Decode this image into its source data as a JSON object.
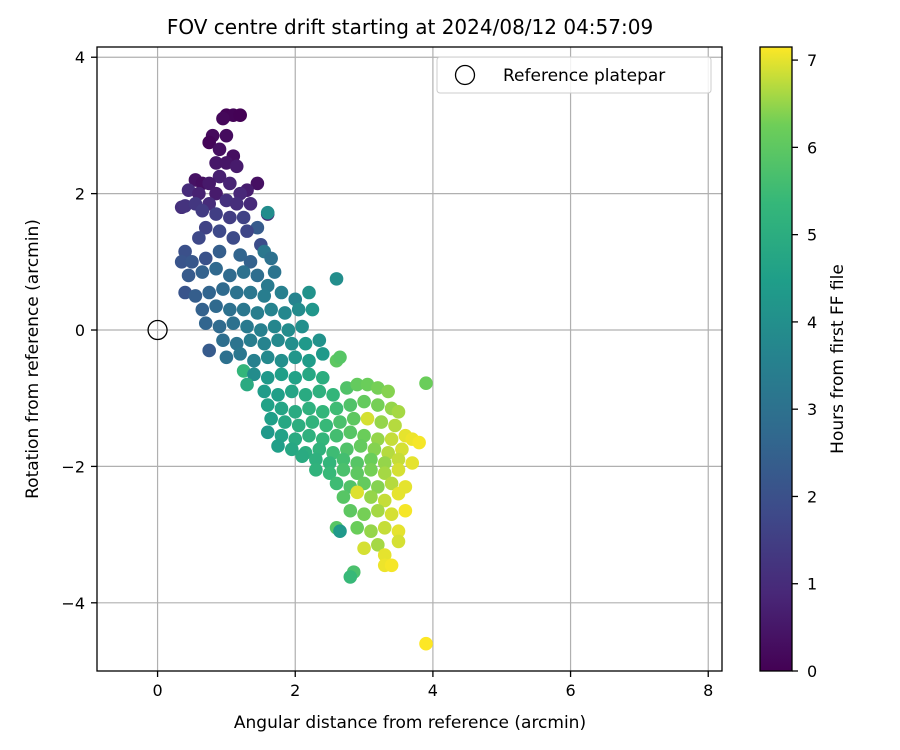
{
  "chart_data": {
    "type": "scatter",
    "title": "FOV centre drift starting at 2024/08/12 04:57:09",
    "xlabel": "Angular distance from reference (arcmin)",
    "ylabel": "Rotation from reference (arcmin)",
    "xlim": [
      -0.88,
      8.2
    ],
    "ylim": [
      -5.0,
      4.15
    ],
    "x_ticks": [
      0,
      2,
      4,
      6,
      8
    ],
    "y_ticks": [
      -4,
      -2,
      0,
      2,
      4
    ],
    "x_tick_labels": [
      "0",
      "2",
      "4",
      "6",
      "8"
    ],
    "y_tick_labels": [
      "−4",
      "−2",
      "0",
      "2",
      "4"
    ],
    "grid": true,
    "legend": {
      "position": "top-right",
      "entries": [
        {
          "label": "Reference platepar",
          "marker": "open-circle",
          "color": "#000000"
        }
      ]
    },
    "reference_point": {
      "x": 0,
      "y": 0
    },
    "colorbar": {
      "label": "Hours from first FF file",
      "range": [
        0,
        7.15
      ],
      "ticks": [
        0,
        1,
        2,
        3,
        4,
        5,
        6,
        7
      ],
      "tick_labels": [
        "0",
        "1",
        "2",
        "3",
        "4",
        "5",
        "6",
        "7"
      ],
      "colormap": "viridis"
    },
    "series": [
      {
        "color_by": "Hours from first FF file",
        "points": [
          [
            1.0,
            3.15,
            0.05
          ],
          [
            1.1,
            3.15,
            0.08
          ],
          [
            1.2,
            3.15,
            0.02
          ],
          [
            0.95,
            3.1,
            0.15
          ],
          [
            0.8,
            2.85,
            0.2
          ],
          [
            0.75,
            2.75,
            0.1
          ],
          [
            1.0,
            2.85,
            0.25
          ],
          [
            0.9,
            2.65,
            0.35
          ],
          [
            1.1,
            2.55,
            0.3
          ],
          [
            0.85,
            2.45,
            0.5
          ],
          [
            1.0,
            2.45,
            0.45
          ],
          [
            1.15,
            2.4,
            0.6
          ],
          [
            0.9,
            2.25,
            0.7
          ],
          [
            0.55,
            2.2,
            0.4
          ],
          [
            0.65,
            2.15,
            0.3
          ],
          [
            0.75,
            2.15,
            0.55
          ],
          [
            1.45,
            2.15,
            0.35
          ],
          [
            1.3,
            2.05,
            0.65
          ],
          [
            1.05,
            2.15,
            0.8
          ],
          [
            0.45,
            2.05,
            1.0
          ],
          [
            0.6,
            2.0,
            0.75
          ],
          [
            0.85,
            2.0,
            0.6
          ],
          [
            1.2,
            2.0,
            0.9
          ],
          [
            0.35,
            1.8,
            1.1
          ],
          [
            0.4,
            1.82,
            1.2
          ],
          [
            0.55,
            1.85,
            1.3
          ],
          [
            0.75,
            1.85,
            1.0
          ],
          [
            1.0,
            1.9,
            1.15
          ],
          [
            1.15,
            1.85,
            1.05
          ],
          [
            1.35,
            1.85,
            0.95
          ],
          [
            1.6,
            1.7,
            0.9
          ],
          [
            0.65,
            1.75,
            1.4
          ],
          [
            0.85,
            1.7,
            1.5
          ],
          [
            1.05,
            1.65,
            1.45
          ],
          [
            1.25,
            1.65,
            1.6
          ],
          [
            1.45,
            1.5,
            2.3
          ],
          [
            1.6,
            1.72,
            3.9
          ],
          [
            1.3,
            1.45,
            1.7
          ],
          [
            0.7,
            1.5,
            1.6
          ],
          [
            0.9,
            1.45,
            1.8
          ],
          [
            1.1,
            1.35,
            1.85
          ],
          [
            1.5,
            1.25,
            1.9
          ],
          [
            0.6,
            1.35,
            1.75
          ],
          [
            0.4,
            1.15,
            2.0
          ],
          [
            0.35,
            1.0,
            2.1
          ],
          [
            0.5,
            1.0,
            2.2
          ],
          [
            0.7,
            1.05,
            2.05
          ],
          [
            0.9,
            1.15,
            2.4
          ],
          [
            1.2,
            1.1,
            2.6
          ],
          [
            1.35,
            1.0,
            2.5
          ],
          [
            1.55,
            1.15,
            3.2
          ],
          [
            1.65,
            1.05,
            3.0
          ],
          [
            0.45,
            0.8,
            2.3
          ],
          [
            0.65,
            0.85,
            2.5
          ],
          [
            0.85,
            0.9,
            2.7
          ],
          [
            1.05,
            0.8,
            2.8
          ],
          [
            1.25,
            0.85,
            3.0
          ],
          [
            1.45,
            0.8,
            2.9
          ],
          [
            1.7,
            0.85,
            3.1
          ],
          [
            1.6,
            0.65,
            3.3
          ],
          [
            2.6,
            0.75,
            3.95
          ],
          [
            0.4,
            0.55,
            2.1
          ],
          [
            0.55,
            0.5,
            2.4
          ],
          [
            0.75,
            0.55,
            2.6
          ],
          [
            0.95,
            0.6,
            2.8
          ],
          [
            1.15,
            0.55,
            3.05
          ],
          [
            1.35,
            0.55,
            3.2
          ],
          [
            1.55,
            0.5,
            3.4
          ],
          [
            1.8,
            0.55,
            3.5
          ],
          [
            2.0,
            0.45,
            3.6
          ],
          [
            2.2,
            0.55,
            4.1
          ],
          [
            0.65,
            0.3,
            2.5
          ],
          [
            0.85,
            0.35,
            2.75
          ],
          [
            1.05,
            0.3,
            3.0
          ],
          [
            1.25,
            0.3,
            3.2
          ],
          [
            1.45,
            0.25,
            3.45
          ],
          [
            1.65,
            0.3,
            3.6
          ],
          [
            1.85,
            0.25,
            3.75
          ],
          [
            2.05,
            0.3,
            3.85
          ],
          [
            2.25,
            0.3,
            4.2
          ],
          [
            0.7,
            0.1,
            2.6
          ],
          [
            0.9,
            0.05,
            2.8
          ],
          [
            1.1,
            0.1,
            3.0
          ],
          [
            1.3,
            0.05,
            3.3
          ],
          [
            1.5,
            0.0,
            3.5
          ],
          [
            1.7,
            0.05,
            3.7
          ],
          [
            1.9,
            0.0,
            3.9
          ],
          [
            2.1,
            0.05,
            4.0
          ],
          [
            0.75,
            -0.3,
            2.3
          ],
          [
            0.95,
            -0.15,
            2.9
          ],
          [
            1.15,
            -0.2,
            3.1
          ],
          [
            1.35,
            -0.15,
            3.4
          ],
          [
            1.55,
            -0.2,
            3.6
          ],
          [
            1.75,
            -0.15,
            3.8
          ],
          [
            1.95,
            -0.2,
            4.0
          ],
          [
            2.15,
            -0.2,
            4.3
          ],
          [
            2.35,
            -0.15,
            4.1
          ],
          [
            1.0,
            -0.4,
            3.0
          ],
          [
            1.2,
            -0.35,
            3.2
          ],
          [
            1.4,
            -0.45,
            3.5
          ],
          [
            1.6,
            -0.4,
            3.8
          ],
          [
            1.8,
            -0.45,
            4.0
          ],
          [
            2.0,
            -0.4,
            4.2
          ],
          [
            2.2,
            -0.45,
            4.4
          ],
          [
            2.4,
            -0.35,
            4.3
          ],
          [
            2.6,
            -0.45,
            6.0
          ],
          [
            2.65,
            -0.4,
            5.9
          ],
          [
            1.25,
            -0.6,
            5.3
          ],
          [
            1.4,
            -0.65,
            3.9
          ],
          [
            1.6,
            -0.7,
            4.3
          ],
          [
            1.8,
            -0.65,
            4.5
          ],
          [
            2.0,
            -0.7,
            4.6
          ],
          [
            2.2,
            -0.65,
            4.8
          ],
          [
            2.4,
            -0.7,
            5.0
          ],
          [
            1.3,
            -0.8,
            4.9
          ],
          [
            1.55,
            -0.9,
            4.4
          ],
          [
            1.75,
            -0.95,
            4.5
          ],
          [
            1.95,
            -0.9,
            4.7
          ],
          [
            2.15,
            -0.95,
            4.9
          ],
          [
            2.35,
            -0.9,
            5.1
          ],
          [
            2.55,
            -0.95,
            5.3
          ],
          [
            2.75,
            -0.85,
            5.8
          ],
          [
            2.9,
            -0.8,
            6.1
          ],
          [
            3.05,
            -0.8,
            6.2
          ],
          [
            3.2,
            -0.85,
            6.3
          ],
          [
            3.35,
            -0.9,
            6.4
          ],
          [
            3.9,
            -0.78,
            6.2
          ],
          [
            1.6,
            -1.1,
            4.6
          ],
          [
            1.8,
            -1.15,
            4.7
          ],
          [
            2.0,
            -1.2,
            4.9
          ],
          [
            2.2,
            -1.15,
            5.1
          ],
          [
            2.4,
            -1.2,
            5.3
          ],
          [
            2.6,
            -1.15,
            5.5
          ],
          [
            2.8,
            -1.1,
            5.8
          ],
          [
            3.0,
            -1.05,
            6.1
          ],
          [
            3.2,
            -1.1,
            6.3
          ],
          [
            3.4,
            -1.15,
            6.5
          ],
          [
            3.5,
            -1.2,
            6.6
          ],
          [
            1.65,
            -1.3,
            4.5
          ],
          [
            1.85,
            -1.35,
            4.8
          ],
          [
            2.05,
            -1.4,
            5.0
          ],
          [
            2.25,
            -1.35,
            5.2
          ],
          [
            2.45,
            -1.4,
            5.4
          ],
          [
            2.65,
            -1.35,
            5.7
          ],
          [
            2.85,
            -1.3,
            6.0
          ],
          [
            3.05,
            -1.3,
            6.9
          ],
          [
            3.25,
            -1.35,
            6.5
          ],
          [
            3.45,
            -1.4,
            6.7
          ],
          [
            1.6,
            -1.5,
            4.3
          ],
          [
            1.8,
            -1.55,
            4.6
          ],
          [
            2.0,
            -1.6,
            4.9
          ],
          [
            2.2,
            -1.55,
            5.1
          ],
          [
            2.4,
            -1.6,
            5.3
          ],
          [
            2.6,
            -1.55,
            5.6
          ],
          [
            2.8,
            -1.5,
            5.9
          ],
          [
            3.0,
            -1.55,
            6.2
          ],
          [
            3.2,
            -1.6,
            6.5
          ],
          [
            3.4,
            -1.6,
            6.8
          ],
          [
            3.6,
            -1.55,
            7.0
          ],
          [
            3.7,
            -1.6,
            7.05
          ],
          [
            3.8,
            -1.65,
            7.1
          ],
          [
            1.75,
            -1.7,
            4.5
          ],
          [
            1.95,
            -1.75,
            4.8
          ],
          [
            2.15,
            -1.8,
            5.0
          ],
          [
            2.35,
            -1.75,
            5.2
          ],
          [
            2.55,
            -1.8,
            5.5
          ],
          [
            2.75,
            -1.75,
            5.8
          ],
          [
            2.95,
            -1.7,
            6.1
          ],
          [
            3.15,
            -1.75,
            6.4
          ],
          [
            3.35,
            -1.8,
            6.7
          ],
          [
            3.55,
            -1.75,
            6.9
          ],
          [
            2.1,
            -1.85,
            4.9
          ],
          [
            2.3,
            -1.9,
            5.1
          ],
          [
            2.5,
            -1.95,
            5.3
          ],
          [
            2.7,
            -1.9,
            5.6
          ],
          [
            2.9,
            -1.95,
            5.9
          ],
          [
            3.1,
            -1.9,
            6.2
          ],
          [
            3.3,
            -1.95,
            6.5
          ],
          [
            3.5,
            -1.9,
            6.8
          ],
          [
            3.7,
            -1.95,
            7.0
          ],
          [
            2.3,
            -2.05,
            5.2
          ],
          [
            2.5,
            -2.1,
            5.4
          ],
          [
            2.7,
            -2.05,
            5.7
          ],
          [
            2.9,
            -2.1,
            6.0
          ],
          [
            3.1,
            -2.05,
            6.3
          ],
          [
            3.3,
            -2.1,
            6.6
          ],
          [
            3.5,
            -2.05,
            6.9
          ],
          [
            2.6,
            -2.25,
            5.5
          ],
          [
            2.8,
            -2.3,
            5.8
          ],
          [
            3.0,
            -2.25,
            6.1
          ],
          [
            3.2,
            -2.3,
            6.4
          ],
          [
            3.4,
            -2.25,
            6.7
          ],
          [
            3.6,
            -2.3,
            7.0
          ],
          [
            2.7,
            -2.45,
            5.9
          ],
          [
            2.9,
            -2.38,
            6.95
          ],
          [
            3.1,
            -2.45,
            6.5
          ],
          [
            3.3,
            -2.5,
            6.8
          ],
          [
            3.5,
            -2.4,
            7.0
          ],
          [
            2.8,
            -2.65,
            6.0
          ],
          [
            3.0,
            -2.7,
            6.3
          ],
          [
            3.2,
            -2.65,
            6.6
          ],
          [
            3.4,
            -2.7,
            6.9
          ],
          [
            3.6,
            -2.65,
            7.1
          ],
          [
            2.6,
            -2.9,
            5.9
          ],
          [
            2.65,
            -2.95,
            4.3
          ],
          [
            2.9,
            -2.9,
            6.2
          ],
          [
            3.1,
            -2.95,
            6.5
          ],
          [
            3.3,
            -2.9,
            6.8
          ],
          [
            3.5,
            -2.95,
            7.0
          ],
          [
            3.0,
            -3.2,
            6.9
          ],
          [
            3.2,
            -3.15,
            6.6
          ],
          [
            3.5,
            -3.1,
            6.9
          ],
          [
            3.3,
            -3.3,
            7.0
          ],
          [
            3.3,
            -3.45,
            7.05
          ],
          [
            3.4,
            -3.45,
            7.1
          ],
          [
            2.85,
            -3.55,
            5.7
          ],
          [
            2.8,
            -3.62,
            5.4
          ],
          [
            3.9,
            -4.6,
            7.15
          ]
        ]
      }
    ]
  }
}
